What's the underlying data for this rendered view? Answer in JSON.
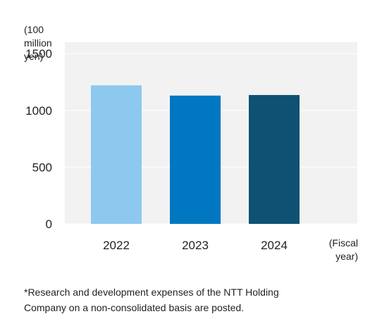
{
  "chart_data": {
    "type": "bar",
    "ylabel_lines": [
      "(100",
      "million",
      "yen)"
    ],
    "xlabel_lines": [
      "(Fiscal",
      "year)"
    ],
    "categories": [
      "2022",
      "2023",
      "2024"
    ],
    "values": [
      1220,
      1130,
      1135
    ],
    "colors": [
      "#8dc9ee",
      "#0077c0",
      "#0f5173"
    ],
    "ylim": [
      0,
      1600
    ],
    "yticks": [
      "0",
      "500",
      "1000",
      "1500"
    ],
    "ytick_values": [
      0,
      500,
      1000,
      1500
    ],
    "grid": true,
    "background": "#f2f2f2",
    "legend": "none"
  },
  "footnote": {
    "line1": "*Research and development expenses of the NTT Holding",
    "line2": "Company on a non-consolidated basis are posted."
  }
}
